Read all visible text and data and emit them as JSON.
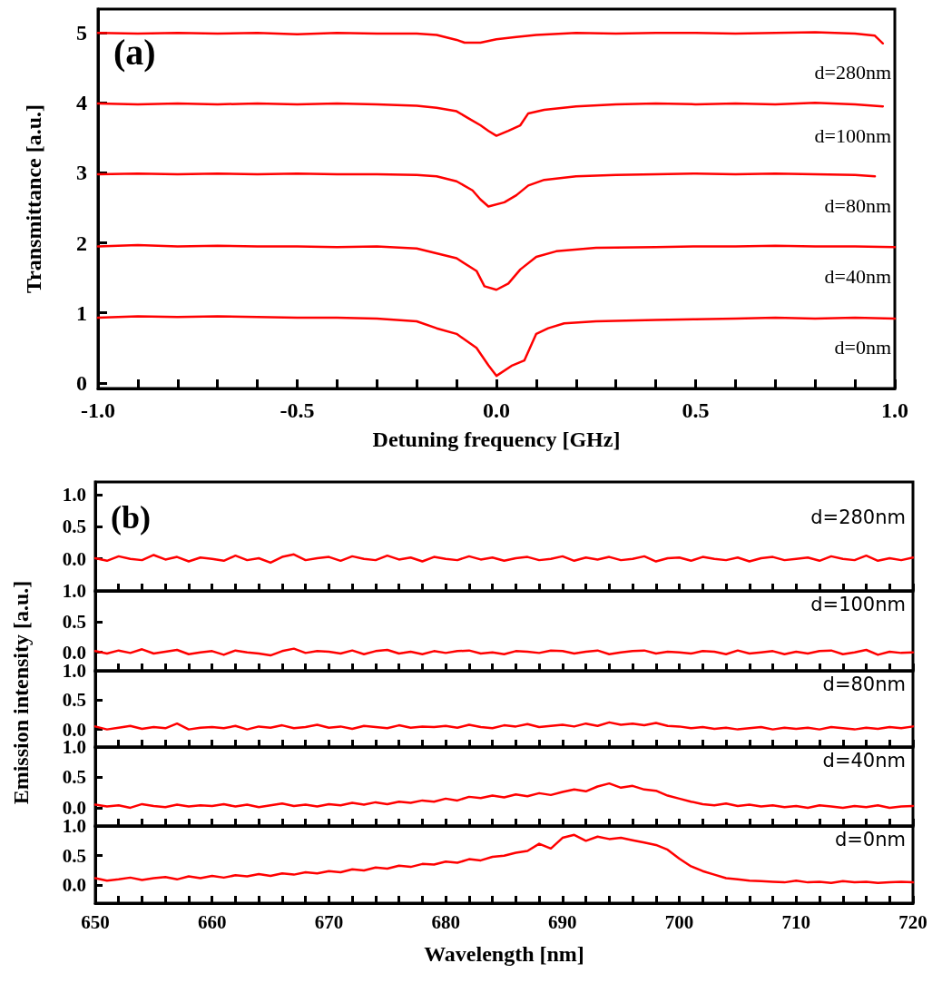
{
  "chart_data": [
    {
      "type": "line",
      "title": "(a)",
      "xlabel": "Detuning frequency [GHz]",
      "ylabel": "Transmittance [a.u.]",
      "xlim": [
        -1,
        1
      ],
      "ylim": [
        -0.08,
        5.34
      ],
      "xticks": [
        {
          "value": -1,
          "label": "-1.0"
        },
        {
          "value": -0.9,
          "label": null
        },
        {
          "value": -0.8,
          "label": null
        },
        {
          "value": -0.7,
          "label": null
        },
        {
          "value": -0.6,
          "label": null
        },
        {
          "value": -0.5,
          "label": "-0.5"
        },
        {
          "value": -0.4,
          "label": null
        },
        {
          "value": -0.3,
          "label": null
        },
        {
          "value": -0.2,
          "label": null
        },
        {
          "value": -0.1,
          "label": null
        },
        {
          "value": 0,
          "label": "0.0"
        },
        {
          "value": 0.1,
          "label": null
        },
        {
          "value": 0.2,
          "label": null
        },
        {
          "value": 0.3,
          "label": null
        },
        {
          "value": 0.4,
          "label": null
        },
        {
          "value": 0.5,
          "label": "0.5"
        },
        {
          "value": 0.6,
          "label": null
        },
        {
          "value": 0.7,
          "label": null
        },
        {
          "value": 0.8,
          "label": null
        },
        {
          "value": 0.9,
          "label": null
        },
        {
          "value": 1,
          "label": "1.0"
        }
      ],
      "yticks": [
        0,
        1,
        2,
        3,
        4,
        5
      ],
      "series": [
        {
          "name": "d=280nm",
          "color": "#ff0000",
          "x": [
            -1,
            -0.9,
            -0.8,
            -0.7,
            -0.6,
            -0.5,
            -0.4,
            -0.3,
            -0.2,
            -0.15,
            -0.1,
            -0.08,
            -0.04,
            0,
            0.05,
            0.1,
            0.2,
            0.3,
            0.4,
            0.5,
            0.6,
            0.7,
            0.8,
            0.9,
            0.95,
            0.97
          ],
          "values": [
            5.0,
            4.99,
            5.0,
            4.99,
            5.0,
            4.98,
            5.0,
            4.99,
            4.99,
            4.97,
            4.9,
            4.86,
            4.86,
            4.91,
            4.94,
            4.97,
            5.0,
            4.99,
            5.0,
            5.0,
            4.99,
            5.0,
            5.01,
            4.99,
            4.96,
            4.85
          ]
        },
        {
          "name": "d=100nm",
          "color": "#ff0000",
          "x": [
            -1,
            -0.9,
            -0.8,
            -0.7,
            -0.6,
            -0.5,
            -0.4,
            -0.3,
            -0.2,
            -0.15,
            -0.1,
            -0.07,
            -0.04,
            -0.02,
            0,
            0.03,
            0.06,
            0.08,
            0.12,
            0.2,
            0.3,
            0.4,
            0.5,
            0.6,
            0.7,
            0.8,
            0.9,
            0.97
          ],
          "values": [
            3.99,
            3.98,
            3.99,
            3.98,
            3.99,
            3.98,
            3.99,
            3.98,
            3.96,
            3.93,
            3.88,
            3.78,
            3.68,
            3.6,
            3.53,
            3.6,
            3.68,
            3.85,
            3.9,
            3.95,
            3.98,
            3.99,
            3.98,
            3.99,
            3.98,
            4.0,
            3.98,
            3.95
          ]
        },
        {
          "name": "d=80nm",
          "color": "#ff0000",
          "x": [
            -1,
            -0.9,
            -0.8,
            -0.7,
            -0.6,
            -0.5,
            -0.4,
            -0.3,
            -0.2,
            -0.15,
            -0.1,
            -0.06,
            -0.04,
            -0.02,
            0.02,
            0.05,
            0.08,
            0.12,
            0.2,
            0.3,
            0.4,
            0.5,
            0.6,
            0.7,
            0.8,
            0.9,
            0.95
          ],
          "values": [
            2.98,
            2.99,
            2.98,
            2.99,
            2.98,
            2.99,
            2.98,
            2.98,
            2.97,
            2.95,
            2.88,
            2.75,
            2.62,
            2.52,
            2.58,
            2.68,
            2.82,
            2.9,
            2.95,
            2.97,
            2.98,
            2.99,
            2.98,
            2.99,
            2.98,
            2.97,
            2.95
          ]
        },
        {
          "name": "d=40nm",
          "color": "#ff0000",
          "x": [
            -1,
            -0.9,
            -0.8,
            -0.7,
            -0.6,
            -0.5,
            -0.4,
            -0.3,
            -0.2,
            -0.1,
            -0.05,
            -0.03,
            0,
            0.03,
            0.06,
            0.1,
            0.15,
            0.25,
            0.4,
            0.5,
            0.6,
            0.7,
            0.8,
            0.9,
            1
          ],
          "values": [
            1.95,
            1.97,
            1.95,
            1.96,
            1.95,
            1.95,
            1.94,
            1.95,
            1.92,
            1.78,
            1.6,
            1.38,
            1.33,
            1.42,
            1.62,
            1.8,
            1.88,
            1.93,
            1.94,
            1.95,
            1.95,
            1.96,
            1.95,
            1.95,
            1.94
          ]
        },
        {
          "name": "d=0nm",
          "color": "#ff0000",
          "x": [
            -1,
            -0.9,
            -0.8,
            -0.7,
            -0.6,
            -0.5,
            -0.4,
            -0.3,
            -0.2,
            -0.15,
            -0.1,
            -0.05,
            -0.02,
            0,
            0.04,
            0.07,
            0.1,
            0.13,
            0.17,
            0.25,
            0.4,
            0.5,
            0.6,
            0.7,
            0.8,
            0.9,
            1
          ],
          "values": [
            0.93,
            0.95,
            0.94,
            0.95,
            0.94,
            0.93,
            0.93,
            0.92,
            0.88,
            0.78,
            0.7,
            0.5,
            0.25,
            0.1,
            0.25,
            0.32,
            0.7,
            0.78,
            0.85,
            0.88,
            0.9,
            0.91,
            0.92,
            0.93,
            0.92,
            0.93,
            0.92
          ]
        }
      ]
    },
    {
      "type": "line",
      "title": "(b)",
      "tick_labels": "y",
      "xlim": [
        650,
        720
      ],
      "ylim": [
        -0.5,
        1.2
      ],
      "xticks": [
        650,
        {
          "value": 652,
          "label": null
        },
        {
          "value": 654,
          "label": null
        },
        {
          "value": 656,
          "label": null
        },
        {
          "value": 658,
          "label": null
        },
        660,
        {
          "value": 662,
          "label": null
        },
        {
          "value": 664,
          "label": null
        },
        {
          "value": 666,
          "label": null
        },
        {
          "value": 668,
          "label": null
        },
        670,
        {
          "value": 672,
          "label": null
        },
        {
          "value": 674,
          "label": null
        },
        {
          "value": 676,
          "label": null
        },
        {
          "value": 678,
          "label": null
        },
        680,
        {
          "value": 682,
          "label": null
        },
        {
          "value": 684,
          "label": null
        },
        {
          "value": 686,
          "label": null
        },
        {
          "value": 688,
          "label": null
        },
        690,
        {
          "value": 692,
          "label": null
        },
        {
          "value": 694,
          "label": null
        },
        {
          "value": 696,
          "label": null
        },
        {
          "value": 698,
          "label": null
        },
        700,
        {
          "value": 702,
          "label": null
        },
        {
          "value": 704,
          "label": null
        },
        {
          "value": 706,
          "label": null
        },
        {
          "value": 708,
          "label": null
        },
        710,
        {
          "value": 712,
          "label": null
        },
        {
          "value": 714,
          "label": null
        },
        {
          "value": 716,
          "label": null
        },
        {
          "value": 718,
          "label": null
        },
        720
      ],
      "yticks": [
        {
          "value": 0,
          "label": "0.0"
        },
        {
          "value": 0.5,
          "label": "0.5"
        },
        {
          "value": 1,
          "label": "1.0"
        }
      ],
      "x": [
        650,
        651,
        652,
        653,
        654,
        655,
        656,
        657,
        658,
        659,
        660,
        661,
        662,
        663,
        664,
        665,
        666,
        667,
        668,
        669,
        670,
        671,
        672,
        673,
        674,
        675,
        676,
        677,
        678,
        679,
        680,
        681,
        682,
        683,
        684,
        685,
        686,
        687,
        688,
        689,
        690,
        691,
        692,
        693,
        694,
        695,
        696,
        697,
        698,
        699,
        700,
        701,
        702,
        703,
        704,
        705,
        706,
        707,
        708,
        709,
        710,
        711,
        712,
        713,
        714,
        715,
        716,
        717,
        718,
        719,
        720
      ],
      "series": [
        {
          "name": "d=280nm",
          "color": "#ff0000",
          "values": [
            0.01,
            -0.03,
            0.04,
            0.0,
            -0.02,
            0.06,
            -0.01,
            0.03,
            -0.04,
            0.02,
            0.0,
            -0.03,
            0.05,
            -0.02,
            0.01,
            -0.06,
            0.03,
            0.07,
            -0.02,
            0.01,
            0.03,
            -0.03,
            0.04,
            0.0,
            -0.02,
            0.05,
            -0.01,
            0.02,
            -0.04,
            0.03,
            0.0,
            -0.02,
            0.04,
            -0.01,
            0.02,
            -0.03,
            0.01,
            0.03,
            -0.02,
            0.0,
            0.04,
            -0.03,
            0.02,
            -0.01,
            0.03,
            -0.02,
            0.0,
            0.04,
            -0.04,
            0.01,
            0.02,
            -0.03,
            0.03,
            0.0,
            -0.02,
            0.02,
            -0.04,
            0.01,
            0.03,
            -0.02,
            0.0,
            0.02,
            -0.03,
            0.04,
            0.0,
            -0.02,
            0.05,
            -0.03,
            0.01,
            -0.02,
            0.02
          ]
        }
      ]
    },
    {
      "type": "line",
      "tick_labels": "y",
      "xlim": [
        650,
        720
      ],
      "ylim": [
        -0.3,
        1.0
      ],
      "xticks": [
        650,
        {
          "value": 652,
          "label": null
        },
        {
          "value": 654,
          "label": null
        },
        {
          "value": 656,
          "label": null
        },
        {
          "value": 658,
          "label": null
        },
        660,
        {
          "value": 662,
          "label": null
        },
        {
          "value": 664,
          "label": null
        },
        {
          "value": 666,
          "label": null
        },
        {
          "value": 668,
          "label": null
        },
        670,
        {
          "value": 672,
          "label": null
        },
        {
          "value": 674,
          "label": null
        },
        {
          "value": 676,
          "label": null
        },
        {
          "value": 678,
          "label": null
        },
        680,
        {
          "value": 682,
          "label": null
        },
        {
          "value": 684,
          "label": null
        },
        {
          "value": 686,
          "label": null
        },
        {
          "value": 688,
          "label": null
        },
        690,
        {
          "value": 692,
          "label": null
        },
        {
          "value": 694,
          "label": null
        },
        {
          "value": 696,
          "label": null
        },
        {
          "value": 698,
          "label": null
        },
        700,
        {
          "value": 702,
          "label": null
        },
        {
          "value": 704,
          "label": null
        },
        {
          "value": 706,
          "label": null
        },
        {
          "value": 708,
          "label": null
        },
        710,
        {
          "value": 712,
          "label": null
        },
        {
          "value": 714,
          "label": null
        },
        {
          "value": 716,
          "label": null
        },
        {
          "value": 718,
          "label": null
        },
        720
      ],
      "yticks": [
        {
          "value": 0,
          "label": "0.0"
        },
        {
          "value": 0.5,
          "label": "0.5"
        },
        {
          "value": 1,
          "label": "1.0"
        }
      ],
      "x": [
        650,
        651,
        652,
        653,
        654,
        655,
        656,
        657,
        658,
        659,
        660,
        661,
        662,
        663,
        664,
        665,
        666,
        667,
        668,
        669,
        670,
        671,
        672,
        673,
        674,
        675,
        676,
        677,
        678,
        679,
        680,
        681,
        682,
        683,
        684,
        685,
        686,
        687,
        688,
        689,
        690,
        691,
        692,
        693,
        694,
        695,
        696,
        697,
        698,
        699,
        700,
        701,
        702,
        703,
        704,
        705,
        706,
        707,
        708,
        709,
        710,
        711,
        712,
        713,
        714,
        715,
        716,
        717,
        718,
        719,
        720
      ],
      "series": [
        {
          "name": "d=100nm",
          "color": "#ff0000",
          "values": [
            0.02,
            -0.02,
            0.03,
            -0.01,
            0.05,
            -0.02,
            0.01,
            0.04,
            -0.03,
            0.0,
            0.02,
            -0.04,
            0.03,
            0.0,
            -0.02,
            -0.05,
            0.02,
            0.06,
            -0.01,
            0.02,
            0.01,
            -0.02,
            0.03,
            -0.03,
            0.02,
            0.04,
            -0.02,
            0.01,
            -0.03,
            0.02,
            -0.01,
            0.02,
            0.03,
            -0.02,
            0.0,
            -0.03,
            0.02,
            0.01,
            -0.01,
            0.03,
            0.02,
            -0.02,
            0.01,
            0.03,
            -0.03,
            0.0,
            0.02,
            0.03,
            -0.02,
            0.01,
            0.0,
            -0.02,
            0.02,
            0.01,
            -0.03,
            0.03,
            -0.02,
            0.0,
            0.02,
            -0.03,
            0.01,
            -0.02,
            0.02,
            0.03,
            -0.03,
            0.0,
            0.04,
            -0.04,
            0.01,
            -0.01,
            0.0
          ]
        }
      ]
    },
    {
      "type": "line",
      "tick_labels": "y",
      "ylabel": "Emission intensity [a.u.]",
      "xlim": [
        650,
        720
      ],
      "ylim": [
        -0.3,
        1.0
      ],
      "xticks": [
        650,
        {
          "value": 652,
          "label": null
        },
        {
          "value": 654,
          "label": null
        },
        {
          "value": 656,
          "label": null
        },
        {
          "value": 658,
          "label": null
        },
        660,
        {
          "value": 662,
          "label": null
        },
        {
          "value": 664,
          "label": null
        },
        {
          "value": 666,
          "label": null
        },
        {
          "value": 668,
          "label": null
        },
        670,
        {
          "value": 672,
          "label": null
        },
        {
          "value": 674,
          "label": null
        },
        {
          "value": 676,
          "label": null
        },
        {
          "value": 678,
          "label": null
        },
        680,
        {
          "value": 682,
          "label": null
        },
        {
          "value": 684,
          "label": null
        },
        {
          "value": 686,
          "label": null
        },
        {
          "value": 688,
          "label": null
        },
        690,
        {
          "value": 692,
          "label": null
        },
        {
          "value": 694,
          "label": null
        },
        {
          "value": 696,
          "label": null
        },
        {
          "value": 698,
          "label": null
        },
        700,
        {
          "value": 702,
          "label": null
        },
        {
          "value": 704,
          "label": null
        },
        {
          "value": 706,
          "label": null
        },
        {
          "value": 708,
          "label": null
        },
        710,
        {
          "value": 712,
          "label": null
        },
        {
          "value": 714,
          "label": null
        },
        {
          "value": 716,
          "label": null
        },
        {
          "value": 718,
          "label": null
        },
        720
      ],
      "yticks": [
        {
          "value": 0,
          "label": "0.0"
        },
        {
          "value": 0.5,
          "label": "0.5"
        },
        {
          "value": 1,
          "label": "1.0"
        }
      ],
      "x": [
        650,
        651,
        652,
        653,
        654,
        655,
        656,
        657,
        658,
        659,
        660,
        661,
        662,
        663,
        664,
        665,
        666,
        667,
        668,
        669,
        670,
        671,
        672,
        673,
        674,
        675,
        676,
        677,
        678,
        679,
        680,
        681,
        682,
        683,
        684,
        685,
        686,
        687,
        688,
        689,
        690,
        691,
        692,
        693,
        694,
        695,
        696,
        697,
        698,
        699,
        700,
        701,
        702,
        703,
        704,
        705,
        706,
        707,
        708,
        709,
        710,
        711,
        712,
        713,
        714,
        715,
        716,
        717,
        718,
        719,
        720
      ],
      "series": [
        {
          "name": "d=80nm",
          "color": "#ff0000",
          "values": [
            0.05,
            0.0,
            0.03,
            0.06,
            0.01,
            0.04,
            0.02,
            0.1,
            0.0,
            0.03,
            0.04,
            0.02,
            0.06,
            0.0,
            0.05,
            0.03,
            0.07,
            0.02,
            0.04,
            0.08,
            0.03,
            0.05,
            0.01,
            0.06,
            0.04,
            0.02,
            0.07,
            0.03,
            0.05,
            0.04,
            0.06,
            0.03,
            0.08,
            0.04,
            0.02,
            0.07,
            0.05,
            0.09,
            0.04,
            0.06,
            0.08,
            0.05,
            0.1,
            0.06,
            0.12,
            0.08,
            0.1,
            0.07,
            0.11,
            0.06,
            0.05,
            0.02,
            0.04,
            0.01,
            0.03,
            0.0,
            0.02,
            0.04,
            0.0,
            0.03,
            0.01,
            0.03,
            0.0,
            0.04,
            0.02,
            0.0,
            0.03,
            0.01,
            0.04,
            0.02,
            0.05
          ]
        }
      ]
    },
    {
      "type": "line",
      "tick_labels": "y",
      "xlim": [
        650,
        720
      ],
      "ylim": [
        -0.3,
        1.0
      ],
      "xticks": [
        650,
        {
          "value": 652,
          "label": null
        },
        {
          "value": 654,
          "label": null
        },
        {
          "value": 656,
          "label": null
        },
        {
          "value": 658,
          "label": null
        },
        660,
        {
          "value": 662,
          "label": null
        },
        {
          "value": 664,
          "label": null
        },
        {
          "value": 666,
          "label": null
        },
        {
          "value": 668,
          "label": null
        },
        670,
        {
          "value": 672,
          "label": null
        },
        {
          "value": 674,
          "label": null
        },
        {
          "value": 676,
          "label": null
        },
        {
          "value": 678,
          "label": null
        },
        680,
        {
          "value": 682,
          "label": null
        },
        {
          "value": 684,
          "label": null
        },
        {
          "value": 686,
          "label": null
        },
        {
          "value": 688,
          "label": null
        },
        690,
        {
          "value": 692,
          "label": null
        },
        {
          "value": 694,
          "label": null
        },
        {
          "value": 696,
          "label": null
        },
        {
          "value": 698,
          "label": null
        },
        700,
        {
          "value": 702,
          "label": null
        },
        {
          "value": 704,
          "label": null
        },
        {
          "value": 706,
          "label": null
        },
        {
          "value": 708,
          "label": null
        },
        710,
        {
          "value": 712,
          "label": null
        },
        {
          "value": 714,
          "label": null
        },
        {
          "value": 716,
          "label": null
        },
        {
          "value": 718,
          "label": null
        },
        720
      ],
      "yticks": [
        {
          "value": 0,
          "label": "0.0"
        },
        {
          "value": 0.5,
          "label": "0.5"
        },
        {
          "value": 1,
          "label": "1.0"
        }
      ],
      "x": [
        650,
        651,
        652,
        653,
        654,
        655,
        656,
        657,
        658,
        659,
        660,
        661,
        662,
        663,
        664,
        665,
        666,
        667,
        668,
        669,
        670,
        671,
        672,
        673,
        674,
        675,
        676,
        677,
        678,
        679,
        680,
        681,
        682,
        683,
        684,
        685,
        686,
        687,
        688,
        689,
        690,
        691,
        692,
        693,
        694,
        695,
        696,
        697,
        698,
        699,
        700,
        701,
        702,
        703,
        704,
        705,
        706,
        707,
        708,
        709,
        710,
        711,
        712,
        713,
        714,
        715,
        716,
        717,
        718,
        719,
        720
      ],
      "series": [
        {
          "name": "d=40nm",
          "color": "#ff0000",
          "values": [
            0.05,
            0.02,
            0.04,
            0.0,
            0.06,
            0.03,
            0.01,
            0.05,
            0.02,
            0.04,
            0.03,
            0.06,
            0.02,
            0.05,
            0.01,
            0.04,
            0.07,
            0.03,
            0.05,
            0.02,
            0.06,
            0.04,
            0.08,
            0.05,
            0.09,
            0.06,
            0.1,
            0.08,
            0.12,
            0.1,
            0.15,
            0.12,
            0.18,
            0.16,
            0.2,
            0.17,
            0.22,
            0.19,
            0.24,
            0.21,
            0.26,
            0.3,
            0.27,
            0.35,
            0.4,
            0.33,
            0.36,
            0.3,
            0.28,
            0.2,
            0.15,
            0.1,
            0.06,
            0.04,
            0.07,
            0.03,
            0.05,
            0.02,
            0.04,
            0.01,
            0.03,
            0.0,
            0.04,
            0.02,
            0.0,
            0.03,
            0.01,
            0.04,
            0.0,
            0.02,
            0.03
          ]
        }
      ]
    },
    {
      "type": "line",
      "xlabel": "Wavelength [nm]",
      "xlim": [
        650,
        720
      ],
      "ylim": [
        -0.3,
        1.0
      ],
      "xticks": [
        650,
        {
          "value": 652,
          "label": null
        },
        {
          "value": 654,
          "label": null
        },
        {
          "value": 656,
          "label": null
        },
        {
          "value": 658,
          "label": null
        },
        660,
        {
          "value": 662,
          "label": null
        },
        {
          "value": 664,
          "label": null
        },
        {
          "value": 666,
          "label": null
        },
        {
          "value": 668,
          "label": null
        },
        670,
        {
          "value": 672,
          "label": null
        },
        {
          "value": 674,
          "label": null
        },
        {
          "value": 676,
          "label": null
        },
        {
          "value": 678,
          "label": null
        },
        680,
        {
          "value": 682,
          "label": null
        },
        {
          "value": 684,
          "label": null
        },
        {
          "value": 686,
          "label": null
        },
        {
          "value": 688,
          "label": null
        },
        690,
        {
          "value": 692,
          "label": null
        },
        {
          "value": 694,
          "label": null
        },
        {
          "value": 696,
          "label": null
        },
        {
          "value": 698,
          "label": null
        },
        700,
        {
          "value": 702,
          "label": null
        },
        {
          "value": 704,
          "label": null
        },
        {
          "value": 706,
          "label": null
        },
        {
          "value": 708,
          "label": null
        },
        710,
        {
          "value": 712,
          "label": null
        },
        {
          "value": 714,
          "label": null
        },
        {
          "value": 716,
          "label": null
        },
        {
          "value": 718,
          "label": null
        },
        720
      ],
      "yticks": [
        {
          "value": 0,
          "label": "0.0"
        },
        {
          "value": 0.5,
          "label": "0.5"
        },
        {
          "value": 1,
          "label": "1.0"
        }
      ],
      "x": [
        650,
        651,
        652,
        653,
        654,
        655,
        656,
        657,
        658,
        659,
        660,
        661,
        662,
        663,
        664,
        665,
        666,
        667,
        668,
        669,
        670,
        671,
        672,
        673,
        674,
        675,
        676,
        677,
        678,
        679,
        680,
        681,
        682,
        683,
        684,
        685,
        686,
        687,
        688,
        689,
        690,
        691,
        692,
        693,
        694,
        695,
        696,
        697,
        698,
        699,
        700,
        701,
        702,
        703,
        704,
        705,
        706,
        707,
        708,
        709,
        710,
        711,
        712,
        713,
        714,
        715,
        716,
        717,
        718,
        719,
        720
      ],
      "series": [
        {
          "name": "d=0nm",
          "color": "#ff0000",
          "values": [
            0.12,
            0.08,
            0.1,
            0.13,
            0.09,
            0.12,
            0.14,
            0.1,
            0.15,
            0.12,
            0.16,
            0.13,
            0.17,
            0.15,
            0.19,
            0.16,
            0.2,
            0.18,
            0.22,
            0.2,
            0.24,
            0.22,
            0.27,
            0.25,
            0.3,
            0.28,
            0.33,
            0.31,
            0.36,
            0.35,
            0.4,
            0.38,
            0.44,
            0.42,
            0.48,
            0.5,
            0.55,
            0.58,
            0.7,
            0.62,
            0.8,
            0.85,
            0.75,
            0.82,
            0.78,
            0.8,
            0.76,
            0.72,
            0.68,
            0.6,
            0.45,
            0.32,
            0.24,
            0.18,
            0.12,
            0.1,
            0.08,
            0.07,
            0.06,
            0.05,
            0.08,
            0.05,
            0.06,
            0.04,
            0.07,
            0.05,
            0.06,
            0.04,
            0.05,
            0.06,
            0.05
          ]
        }
      ]
    }
  ]
}
